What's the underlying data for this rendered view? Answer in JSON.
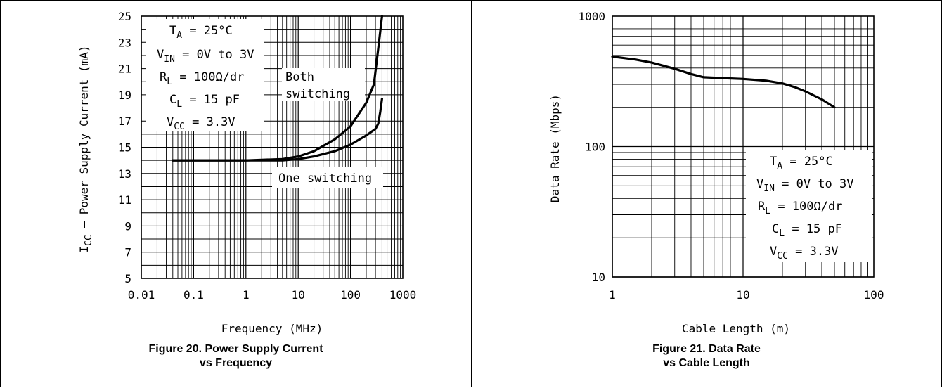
{
  "chart_data": [
    {
      "type": "line",
      "title": "",
      "xlabel": "Frequency (MHz)",
      "ylabel_parts": [
        "I",
        "CC",
        " – Power Supply Current (mA)"
      ],
      "x_scale": "log",
      "xlim": [
        0.01,
        1000
      ],
      "ylim": [
        5,
        25
      ],
      "x_ticks": [
        "0.01",
        "0.1",
        "1",
        "10",
        "100",
        "1000"
      ],
      "y_ticks": [
        "5",
        "7",
        "9",
        "11",
        "13",
        "15",
        "17",
        "19",
        "21",
        "23",
        "25"
      ],
      "grid": true,
      "series": [
        {
          "name": "Both switching",
          "x": [
            0.04,
            0.1,
            1,
            5,
            10,
            20,
            50,
            100,
            200,
            280,
            350,
            400
          ],
          "y": [
            14.0,
            14.0,
            14.0,
            14.1,
            14.3,
            14.7,
            15.6,
            16.6,
            18.4,
            19.8,
            23.0,
            25.0
          ]
        },
        {
          "name": "One switching",
          "x": [
            0.04,
            0.1,
            1,
            5,
            10,
            20,
            50,
            100,
            200,
            300,
            340,
            370,
            400
          ],
          "y": [
            14.0,
            14.0,
            14.0,
            14.0,
            14.1,
            14.3,
            14.7,
            15.2,
            15.9,
            16.4,
            16.8,
            17.7,
            18.7
          ]
        }
      ],
      "annotations": [
        {
          "id": "ta",
          "parts": [
            [
              "T",
              ""
            ],
            [
              "A",
              "sub"
            ],
            [
              " = 25°C",
              ""
            ]
          ]
        },
        {
          "id": "vin",
          "parts": [
            [
              "V",
              ""
            ],
            [
              "IN",
              "sub"
            ],
            [
              " = 0V to 3V",
              ""
            ]
          ]
        },
        {
          "id": "rl",
          "parts": [
            [
              "R",
              ""
            ],
            [
              "L",
              "sub"
            ],
            [
              " = 100Ω/dr",
              ""
            ]
          ]
        },
        {
          "id": "cl",
          "parts": [
            [
              "C",
              ""
            ],
            [
              "L",
              "sub"
            ],
            [
              " = 15 pF",
              ""
            ]
          ]
        },
        {
          "id": "vcc",
          "parts": [
            [
              "V",
              ""
            ],
            [
              "CC",
              "sub"
            ],
            [
              " = 3.3V",
              ""
            ]
          ]
        },
        {
          "id": "both1",
          "parts": [
            [
              "Both",
              ""
            ]
          ]
        },
        {
          "id": "both2",
          "parts": [
            [
              "switching",
              ""
            ]
          ]
        },
        {
          "id": "one",
          "parts": [
            [
              "One switching",
              ""
            ]
          ]
        }
      ],
      "caption_line1": "Figure 20. Power Supply Current",
      "caption_line2": "vs Frequency"
    },
    {
      "type": "line",
      "title": "",
      "xlabel": "Cable Length (m)",
      "ylabel": "Data Rate (Mbps)",
      "x_scale": "log",
      "y_scale": "log",
      "xlim": [
        1,
        100
      ],
      "ylim": [
        10,
        1000
      ],
      "x_ticks": [
        "1",
        "10",
        "100"
      ],
      "y_ticks": [
        "10",
        "100",
        "1000"
      ],
      "grid": true,
      "series": [
        {
          "name": "",
          "x": [
            1,
            1.5,
            2,
            3,
            4,
            5,
            7,
            10,
            15,
            20,
            25,
            30,
            40,
            50
          ],
          "y": [
            490,
            465,
            440,
            395,
            360,
            340,
            335,
            330,
            320,
            305,
            285,
            265,
            230,
            200
          ]
        }
      ],
      "annotations": [
        {
          "id": "ta",
          "parts": [
            [
              "T",
              ""
            ],
            [
              "A",
              "sub"
            ],
            [
              " = 25°C",
              ""
            ]
          ]
        },
        {
          "id": "vin",
          "parts": [
            [
              "V",
              ""
            ],
            [
              "IN",
              "sub"
            ],
            [
              " = 0V to 3V",
              ""
            ]
          ]
        },
        {
          "id": "rl",
          "parts": [
            [
              "R",
              ""
            ],
            [
              "L",
              "sub"
            ],
            [
              " = 100Ω/dr",
              ""
            ]
          ]
        },
        {
          "id": "cl",
          "parts": [
            [
              "C",
              ""
            ],
            [
              "L",
              "sub"
            ],
            [
              " = 15 pF",
              ""
            ]
          ]
        },
        {
          "id": "vcc",
          "parts": [
            [
              "V",
              ""
            ],
            [
              "CC",
              "sub"
            ],
            [
              " = 3.3V",
              ""
            ]
          ]
        }
      ],
      "caption_line1": "Figure 21. Data Rate",
      "caption_line2": "vs Cable Length"
    }
  ]
}
